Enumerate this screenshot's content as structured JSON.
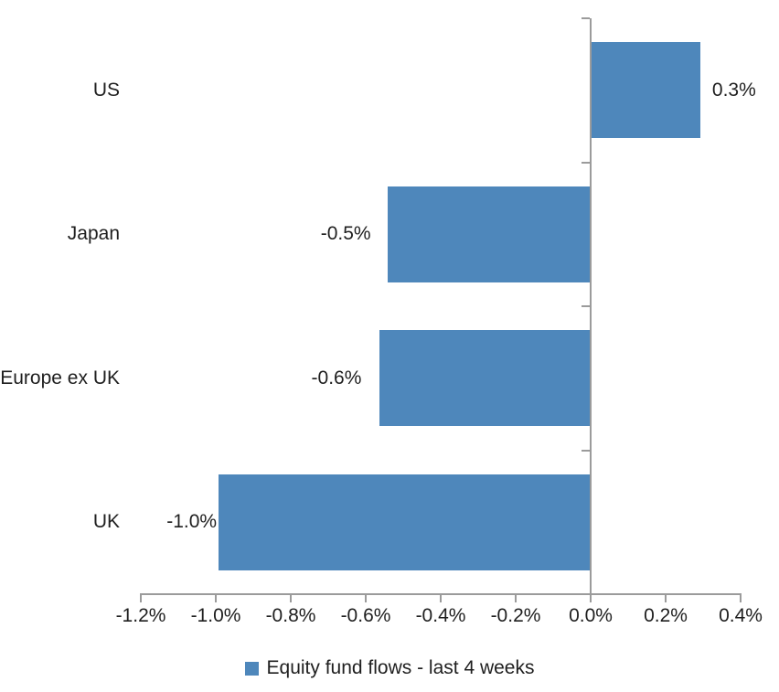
{
  "chart_data": {
    "type": "bar",
    "orientation": "horizontal",
    "categories": [
      "US",
      "Japan",
      "Europe ex UK",
      "UK"
    ],
    "values": [
      0.3,
      -0.5,
      -0.6,
      -1.0
    ],
    "plotted_values": [
      0.29,
      -0.54,
      -0.56,
      -0.99
    ],
    "value_labels": [
      "0.3%",
      "-0.5%",
      "-0.6%",
      "-1.0%"
    ],
    "x_axis": {
      "min": -1.2,
      "max": 0.4,
      "tick_step": 0.2,
      "tick_labels": [
        "-1.2%",
        "-1.0%",
        "-0.8%",
        "-0.6%",
        "-0.4%",
        "-0.2%",
        "0.0%",
        "0.2%",
        "0.4%"
      ]
    },
    "grid": false,
    "legend": {
      "position": "bottom",
      "entries": [
        {
          "label": "Equity fund flows - last 4 weeks",
          "swatch_color": "#4E87BB"
        }
      ]
    }
  },
  "colors": {
    "bar": "#4E87BB",
    "axis": "#9B9B9B",
    "text": "#1F1F1F",
    "background": "#FFFFFF"
  }
}
